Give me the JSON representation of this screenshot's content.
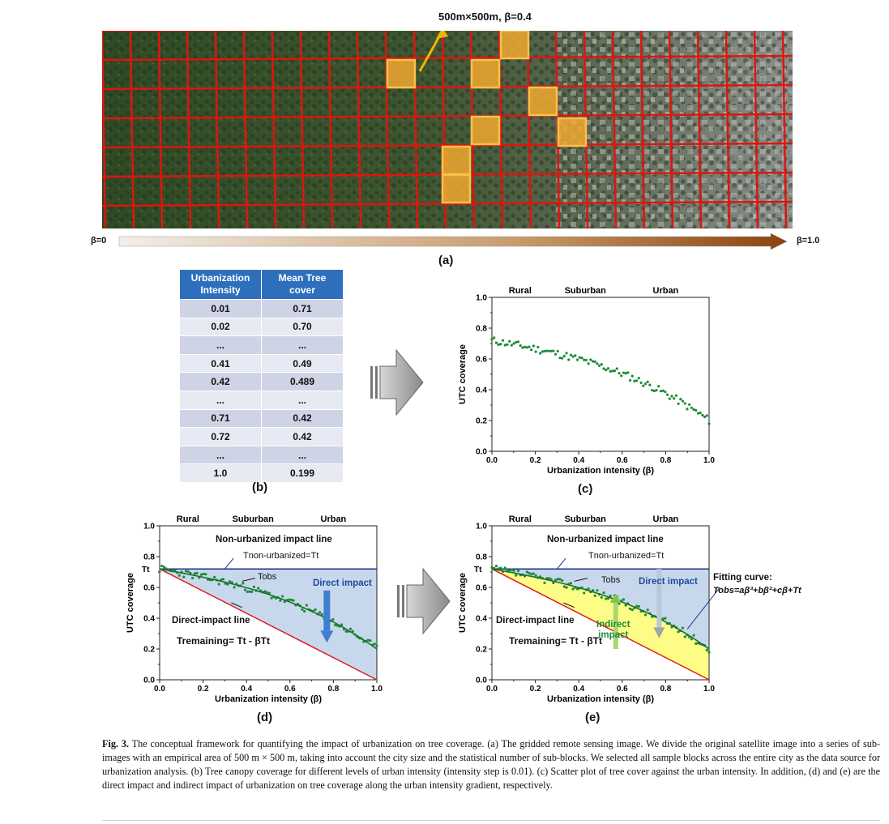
{
  "panel_a": {
    "block_label": "500m×500m, β=0.4",
    "beta_start": "β=0",
    "beta_end": "β=1.0",
    "caption": "(a)"
  },
  "panel_b": {
    "headers": [
      "Urbanization Intensity",
      "Mean Tree cover"
    ],
    "rows": [
      [
        "0.01",
        "0.71"
      ],
      [
        "0.02",
        "0.70"
      ],
      [
        "...",
        "..."
      ],
      [
        "0.41",
        "0.49"
      ],
      [
        "0.42",
        "0.489"
      ],
      [
        "...",
        "..."
      ],
      [
        "0.71",
        "0.42"
      ],
      [
        "0.72",
        "0.42"
      ],
      [
        "...",
        "..."
      ],
      [
        "1.0",
        "0.199"
      ]
    ],
    "caption": "(b)"
  },
  "panel_c": {
    "caption": "(c)"
  },
  "panel_d": {
    "caption": "(d)",
    "non_urbanized_line": "Non-urbanized impact line",
    "t_non_urbanized": "Tnon-urbanized=Tt",
    "t_obs": "Tobs",
    "direct_impact": "Direct impact",
    "direct_impact_line": "Direct-impact line",
    "t_remaining": "Tremaining= Tt - βTt",
    "tt_label": "Tt"
  },
  "panel_e": {
    "caption": "(e)",
    "non_urbanized_line": "Non-urbanized impact line",
    "t_non_urbanized": "Tnon-urbanized=Tt",
    "t_obs": "Tobs",
    "direct_impact": "Direct impact",
    "indirect_impact_1": "Indirect",
    "indirect_impact_2": "impact",
    "direct_impact_line": "Direct-impact line",
    "t_remaining": "Tremaining= Tt - βTt",
    "fitting_title": "Fitting curve:",
    "fitting_eq": "Tobs=aβ³+bβ²+cβ+Tt",
    "tt_label": "Tt"
  },
  "chart_data": [
    {
      "id": "c",
      "type": "scatter",
      "xlabel": "Urbanization intensity (β)",
      "ylabel": "UTC coverage",
      "xlim": [
        0,
        1
      ],
      "ylim": [
        0,
        1
      ],
      "xticks": [
        "0.0",
        "0.2",
        "0.4",
        "0.6",
        "0.8",
        "1.0"
      ],
      "yticks": [
        "0.0",
        "0.2",
        "0.4",
        "0.6",
        "0.8",
        "1.0"
      ],
      "zones": [
        "Rural",
        "Suburban",
        "Urban"
      ],
      "series": [
        {
          "color": "#1e8a3a",
          "curve": "Tobs = 0.72 - 0.25β - 0.05β² - 0.22β³ (noise ±0.02)",
          "n": 100
        }
      ]
    },
    {
      "id": "d",
      "type": "scatter",
      "xlabel": "Urbanization intensity (β)",
      "ylabel": "UTC coverage",
      "xlim": [
        0,
        1
      ],
      "ylim": [
        0,
        1
      ],
      "xticks": [
        "0.0",
        "0.2",
        "0.4",
        "0.6",
        "0.8",
        "1.0"
      ],
      "yticks": [
        "0.0",
        "0.2",
        "0.4",
        "0.6",
        "0.8",
        "1.0"
      ],
      "zones": [
        "Rural",
        "Suburban",
        "Urban"
      ],
      "tt": 0.72,
      "lines": [
        {
          "kind": "non-urbanized",
          "color": "#1b2f8c"
        },
        {
          "kind": "direct-impact",
          "color": "#e21b1b"
        }
      ]
    },
    {
      "id": "e",
      "type": "scatter",
      "xlabel": "Urbanization intensity (β)",
      "ylabel": "UTC coverage",
      "xlim": [
        0,
        1
      ],
      "ylim": [
        0,
        1
      ],
      "xticks": [
        "0.0",
        "0.2",
        "0.4",
        "0.6",
        "0.8",
        "1.0"
      ],
      "yticks": [
        "0.0",
        "0.2",
        "0.4",
        "0.6",
        "0.8",
        "1.0"
      ],
      "zones": [
        "Rural",
        "Suburban",
        "Urban"
      ],
      "tt": 0.72,
      "lines": [
        {
          "kind": "non-urbanized",
          "color": "#1b2f8c"
        },
        {
          "kind": "direct-impact",
          "color": "#e21b1b"
        }
      ]
    }
  ],
  "figure_caption": {
    "label": "Fig. 3.",
    "text": " The conceptual framework for quantifying the impact of urbanization on tree coverage. (a) The gridded remote sensing image. We divide the original satellite image into a series of sub-images with an empirical area of 500 m × 500 m, taking into account the city size and the statistical number of sub-blocks. We selected all sample blocks across the entire city as the data source for urbanization analysis. (b) Tree canopy coverage for different levels of urban intensity (intensity step is 0.01). (c) Scatter plot of tree cover against the urban intensity. In addition, (d) and (e) are the direct impact and indirect impact of urbanization on tree coverage along the urban intensity gradient, respectively."
  }
}
